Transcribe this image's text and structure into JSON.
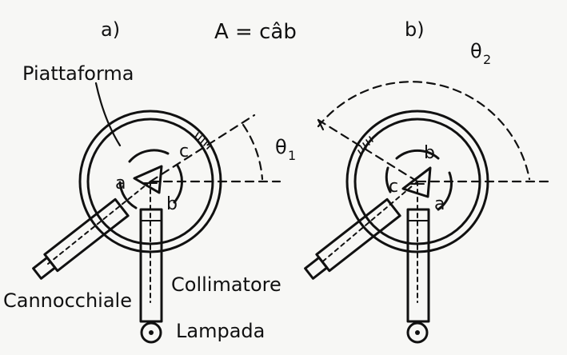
{
  "labels": {
    "panel_a": "a)",
    "panel_b": "b)",
    "formula": "A = câb",
    "piattaforma": "Piattaforma",
    "cannocchiale": "Cannocchiale",
    "collimatore": "Collimatore",
    "lampada": "Lampada",
    "theta1_sym": "θ",
    "theta1_sub": "1",
    "theta2_sym": "θ",
    "theta2_sub": "2"
  },
  "vertices_a": {
    "a": "a",
    "b": "b",
    "c": "c"
  },
  "vertices_b": {
    "a": "a",
    "b": "b",
    "c": "c"
  }
}
